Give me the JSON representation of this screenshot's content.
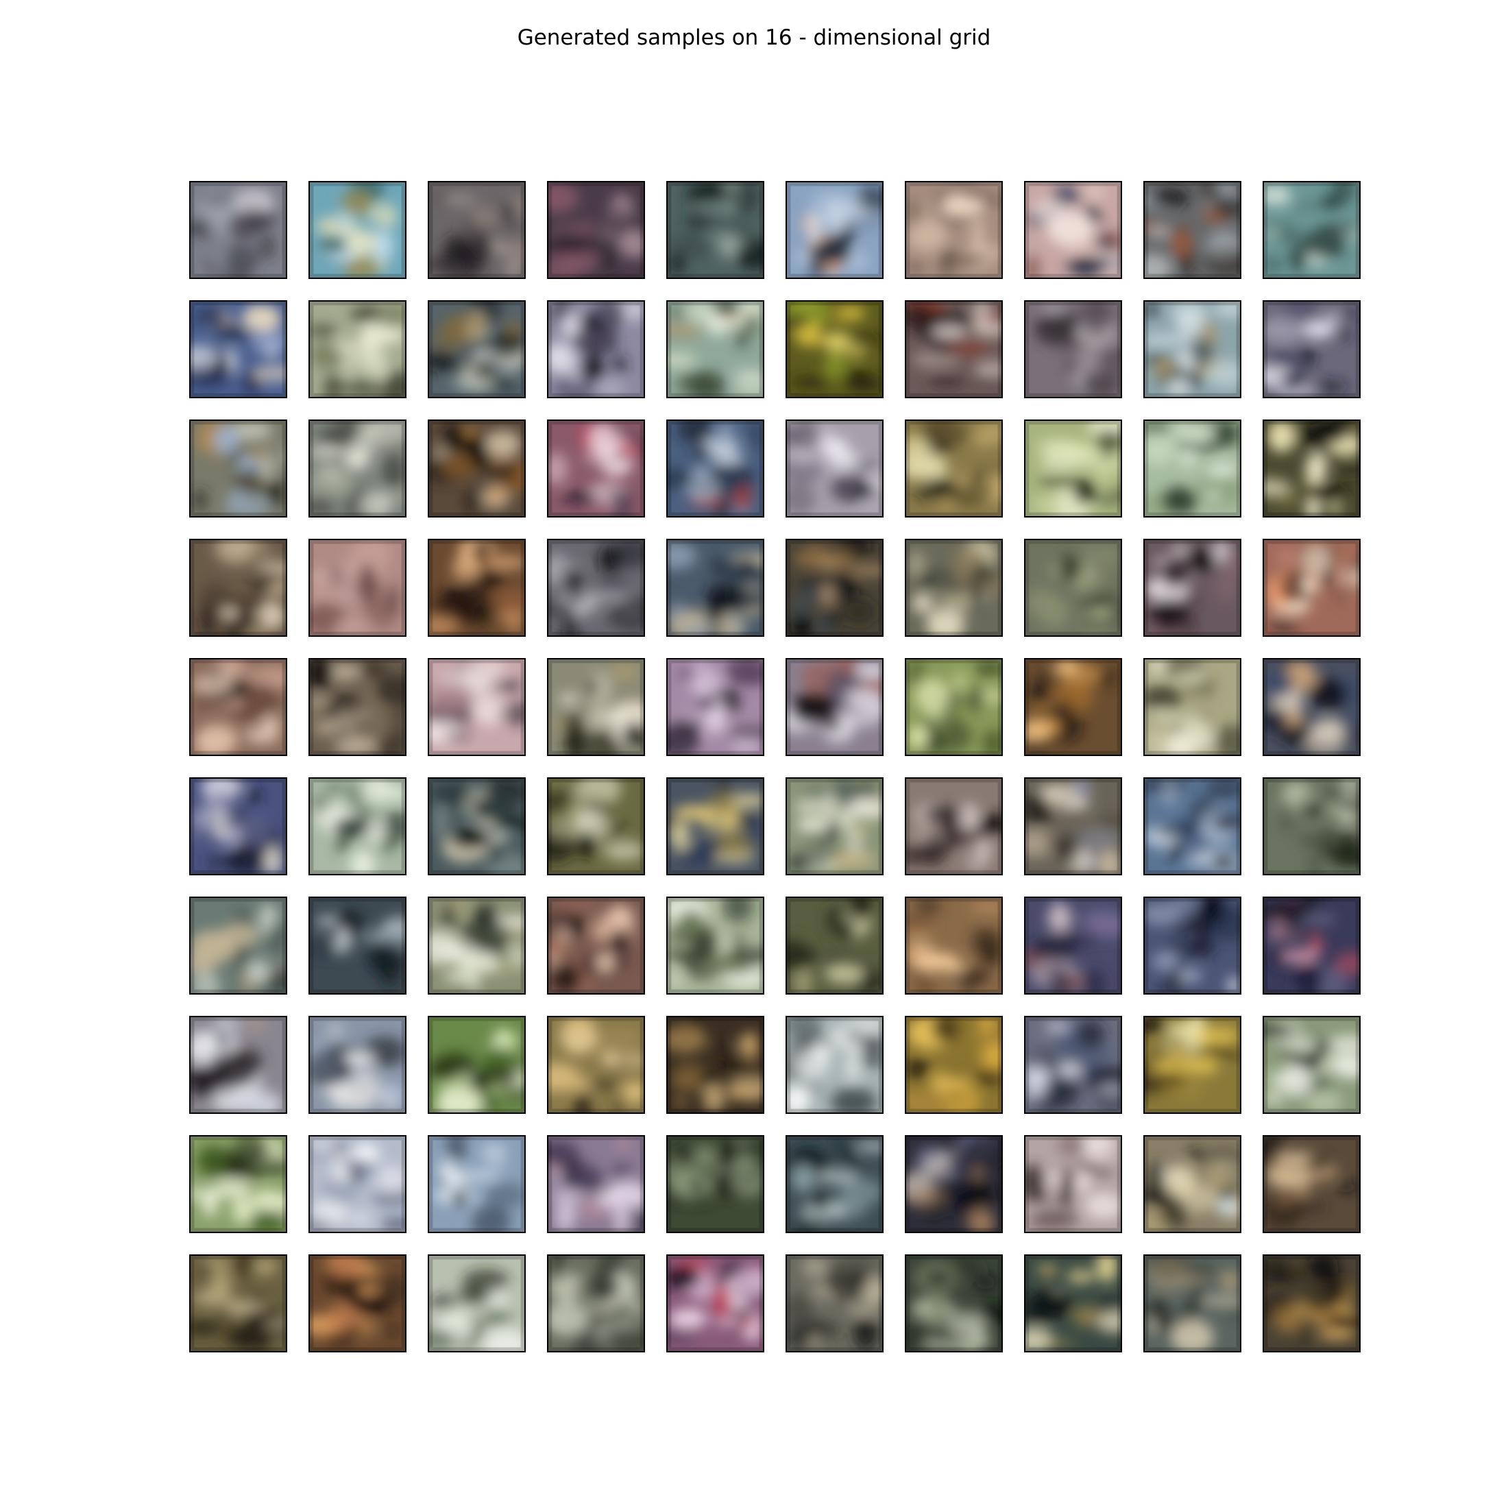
{
  "figure": {
    "title": "Generated samples on 16 - dimensional grid"
  },
  "grid": {
    "rows": 10,
    "cols": 10,
    "samples": [
      {
        "bg": "#7d7f8a",
        "c": [
          "#3a3540",
          "#c7c3cc",
          "#4b4a52",
          "#9aa0ab",
          "#2a2a30"
        ]
      },
      {
        "bg": "#6fa7b8",
        "c": [
          "#d9d7b0",
          "#2f5a57",
          "#b8d8e8",
          "#8f8a5a",
          "#e8e4c2"
        ]
      },
      {
        "bg": "#6b6668",
        "c": [
          "#2e2a2e",
          "#b5aaa3",
          "#4c4448",
          "#8e827d",
          "#1f1c1f"
        ]
      },
      {
        "bg": "#4a3b49",
        "c": [
          "#8a5a6a",
          "#1f1820",
          "#b59aa3",
          "#3a2f3d",
          "#6b4e5b"
        ]
      },
      {
        "bg": "#4f6361",
        "c": [
          "#1d2726",
          "#a9b7b0",
          "#3a4a48",
          "#7e918c",
          "#121a19"
        ]
      },
      {
        "bg": "#8aa3c2",
        "c": [
          "#d8e2ee",
          "#3a4455",
          "#e0a98a",
          "#24303d",
          "#b9c9dd"
        ]
      },
      {
        "bg": "#a68e7f",
        "c": [
          "#d4bba5",
          "#5a4a42",
          "#8a7468",
          "#efd9c5",
          "#6a574c"
        ]
      },
      {
        "bg": "#c7a7a6",
        "c": [
          "#2f3a5a",
          "#f2e1dc",
          "#8d5f58",
          "#1f2438",
          "#ddc3bc"
        ]
      },
      {
        "bg": "#66686a",
        "c": [
          "#2a1e18",
          "#9aa3aa",
          "#a05a3a",
          "#1a1614",
          "#c2c6c8"
        ]
      },
      {
        "bg": "#6c9795",
        "c": [
          "#203430",
          "#b8d0c6",
          "#4d6c68",
          "#d6e2dc",
          "#2b4440"
        ]
      },
      {
        "bg": "#4a5f8f",
        "c": [
          "#1c2440",
          "#d7dce6",
          "#8b9cc4",
          "#e6d7c0",
          "#2c3558"
        ]
      },
      {
        "bg": "#a4ab90",
        "c": [
          "#d9ddc2",
          "#4c4f3c",
          "#7c8262",
          "#efeed8",
          "#3a3d2c"
        ]
      },
      {
        "bg": "#55636a",
        "c": [
          "#0f1214",
          "#b8c2c0",
          "#8a6a30",
          "#2b3436",
          "#d6d3bf"
        ]
      },
      {
        "bg": "#8e8aa3",
        "c": [
          "#1c1a24",
          "#e0dde8",
          "#5a5670",
          "#b8b4c8",
          "#2e2b3a"
        ]
      },
      {
        "bg": "#8fa89a",
        "c": [
          "#d6e0c8",
          "#4a5a40",
          "#b09060",
          "#e8eee0",
          "#33402e"
        ]
      },
      {
        "bg": "#5c5a1e",
        "c": [
          "#e0c440",
          "#141408",
          "#8a9a2a",
          "#f2e070",
          "#262410"
        ]
      },
      {
        "bg": "#6c5a58",
        "c": [
          "#1f1515",
          "#c9b9b4",
          "#8a3a2e",
          "#e8dcd6",
          "#3d2c2a"
        ]
      },
      {
        "bg": "#7a7078",
        "c": [
          "#4a4048",
          "#9c929a",
          "#5c535a",
          "#b3abb1",
          "#3a3238"
        ]
      },
      {
        "bg": "#8ca4ab",
        "c": [
          "#c8d8dc",
          "#2e3a3c",
          "#b09a6a",
          "#e0eaec",
          "#4c5c60"
        ]
      },
      {
        "bg": "#6a687a",
        "c": [
          "#22203a",
          "#b8b6c6",
          "#4a4866",
          "#dcdae4",
          "#1a1828"
        ]
      },
      {
        "bg": "#7a7a6a",
        "c": [
          "#9ab0cc",
          "#3a3422",
          "#b08a50",
          "#d6d6c6",
          "#2a2a22"
        ]
      },
      {
        "bg": "#7d837c",
        "c": [
          "#d6d8cc",
          "#3a3e36",
          "#a2a898",
          "#eceadc",
          "#4e524a"
        ]
      },
      {
        "bg": "#5a4a3a",
        "c": [
          "#1a120c",
          "#c8b8a0",
          "#8a5a2a",
          "#e0a050",
          "#2c241c"
        ]
      },
      {
        "bg": "#8a5a6a",
        "c": [
          "#f0dae2",
          "#1a1020",
          "#c84058",
          "#4a3a4e",
          "#e8c8d4"
        ]
      },
      {
        "bg": "#4a6080",
        "c": [
          "#18202c",
          "#b8c8dc",
          "#a03a3a",
          "#d8e0ea",
          "#2a3a50"
        ]
      },
      {
        "bg": "#a6a0ac",
        "c": [
          "#e8e4ec",
          "#2a2630",
          "#6a6070",
          "#cfc8d4",
          "#48424e"
        ]
      },
      {
        "bg": "#8a7a4a",
        "c": [
          "#c8b070",
          "#1a1810",
          "#e0d8a8",
          "#4a3e22",
          "#b8a060"
        ]
      },
      {
        "bg": "#a8b480",
        "c": [
          "#e0e8b8",
          "#3a4428",
          "#c4cf98",
          "#283018",
          "#f0f2d4"
        ]
      },
      {
        "bg": "#a6bca0",
        "c": [
          "#d8e8d0",
          "#1e2e1e",
          "#8aa27c",
          "#eaf2e4",
          "#3a4c36"
        ]
      },
      {
        "bg": "#4a4a30",
        "c": [
          "#0e0e08",
          "#e8e0b0",
          "#8a8248",
          "#2a2818",
          "#f6f0d0"
        ]
      },
      {
        "bg": "#6a5a48",
        "c": [
          "#1e1610",
          "#c8b498",
          "#4a3a2c",
          "#e8d8c0",
          "#8a7a60"
        ]
      },
      {
        "bg": "#b08a84",
        "c": [
          "#c8a09a",
          "#7a5450",
          "#d8b8b2",
          "#6a4a46",
          "#b49490"
        ]
      },
      {
        "bg": "#6a4a30",
        "c": [
          "#140c08",
          "#c89060",
          "#3a2418",
          "#e0b080",
          "#8a5a38"
        ]
      },
      {
        "bg": "#6a6870",
        "c": [
          "#1a1a20",
          "#c8c6ce",
          "#3e3c46",
          "#a8a6ae",
          "#0e0e14"
        ]
      },
      {
        "bg": "#4a5a6a",
        "c": [
          "#141a22",
          "#c8b490",
          "#2a3848",
          "#8a9cb0",
          "#e0d2b4"
        ]
      },
      {
        "bg": "#4a4438",
        "c": [
          "#0e0c0a",
          "#8a6a40",
          "#3a4a5a",
          "#c8a070",
          "#1e1a14"
        ]
      },
      {
        "bg": "#6a6a5a",
        "c": [
          "#2a2e26",
          "#c8c0a0",
          "#8a7a5a",
          "#e0d8c0",
          "#4a4e42"
        ]
      },
      {
        "bg": "#6e7460",
        "c": [
          "#8a9070",
          "#4e5442",
          "#a2a884",
          "#3e4434",
          "#7c8266"
        ]
      },
      {
        "bg": "#6a5860",
        "c": [
          "#1a1218",
          "#e8e0e4",
          "#8a6a74",
          "#d6ccd0",
          "#3a2a32"
        ]
      },
      {
        "bg": "#a06a5a",
        "c": [
          "#fff0d8",
          "#2a1a18",
          "#f0a070",
          "#c88878",
          "#4a2e28"
        ]
      },
      {
        "bg": "#8a6a5a",
        "c": [
          "#c8a090",
          "#3a2a24",
          "#e0c0a8",
          "#6a4a3e",
          "#f0d8c4"
        ]
      },
      {
        "bg": "#6a5e4e",
        "c": [
          "#1a1612",
          "#b8a890",
          "#3e3428",
          "#d8c8b0",
          "#8a7a64"
        ]
      },
      {
        "bg": "#c8a8ac",
        "c": [
          "#ecdcdc",
          "#2a2430",
          "#b08890",
          "#f6eeee",
          "#6a5460"
        ]
      },
      {
        "bg": "#8a8a76",
        "c": [
          "#1a1a12",
          "#d8d4c0",
          "#a89a70",
          "#4a4a38",
          "#eeeade"
        ]
      },
      {
        "bg": "#a48aa6",
        "c": [
          "#f0e0f0",
          "#1e1622",
          "#6a4a70",
          "#d8c4dc",
          "#3a2c3e"
        ]
      },
      {
        "bg": "#8a8090",
        "c": [
          "#e8e4ec",
          "#1a1418",
          "#a05a4a",
          "#5a5062",
          "#d0c8d4"
        ]
      },
      {
        "bg": "#8a9a5a",
        "c": [
          "#e0e8b0",
          "#1e2812",
          "#4a5a2a",
          "#c8d498",
          "#2e3a1c"
        ]
      },
      {
        "bg": "#6a4e30",
        "c": [
          "#1a1210",
          "#e0a050",
          "#a06a30",
          "#3a2818",
          "#f0c080"
        ]
      },
      {
        "bg": "#aaa884",
        "c": [
          "#d8d6b8",
          "#3a3a2a",
          "#8a8868",
          "#eeecd6",
          "#5a5a44"
        ]
      },
      {
        "bg": "#4a5060",
        "c": [
          "#141820",
          "#c8a078",
          "#3a4a6a",
          "#dcd0c0",
          "#1e2434"
        ]
      },
      {
        "bg": "#4a5280",
        "c": [
          "#1a1c30",
          "#c8c8d8",
          "#6a6c94",
          "#e0dcd0",
          "#2c2e48"
        ]
      },
      {
        "bg": "#a8b8a4",
        "c": [
          "#e4ecdc",
          "#2a3a2e",
          "#6a7e6a",
          "#f2f6ec",
          "#40523e"
        ]
      },
      {
        "bg": "#4a5a5e",
        "c": [
          "#0e1414",
          "#c8c0a8",
          "#2a3a3c",
          "#8a9a98",
          "#e0d8c4"
        ]
      },
      {
        "bg": "#6a6a42",
        "c": [
          "#1a1a0e",
          "#b8b898",
          "#8a8a5a",
          "#3a3a22",
          "#d8d8c0"
        ]
      },
      {
        "bg": "#4a5462",
        "c": [
          "#121820",
          "#e0c878",
          "#2a3a58",
          "#8a7a48",
          "#f6e6a8"
        ]
      },
      {
        "bg": "#8a9478",
        "c": [
          "#e0e4d0",
          "#1a2424",
          "#c8b888",
          "#4a5a54",
          "#f0eee0"
        ]
      },
      {
        "bg": "#8a7a74",
        "c": [
          "#2a2020",
          "#d8ccc8",
          "#5a4a46",
          "#b8a8a0",
          "#1a1414"
        ]
      },
      {
        "bg": "#6a6458",
        "c": [
          "#2a2620",
          "#c8b8a0",
          "#8a8ca0",
          "#4a443a",
          "#e0d8c8"
        ]
      },
      {
        "bg": "#5a7494",
        "c": [
          "#1a2434",
          "#c8d4e0",
          "#3a5070",
          "#a8b8cc",
          "#0e1420"
        ]
      },
      {
        "bg": "#6a7460",
        "c": [
          "#1e2418",
          "#d0d8c0",
          "#4a5440",
          "#b0b8a0",
          "#2e3426"
        ]
      },
      {
        "bg": "#6a7a74",
        "c": [
          "#c8b898",
          "#2a3434",
          "#a89070",
          "#dce2d8",
          "#4a5854"
        ]
      },
      {
        "bg": "#3e4a52",
        "c": [
          "#121a1e",
          "#a8b8c0",
          "#2a3640",
          "#c8d0d4",
          "#1a242a"
        ]
      },
      {
        "bg": "#8a9074",
        "c": [
          "#e8ecd8",
          "#2a3028",
          "#b0a880",
          "#f4f4e8",
          "#3e4638"
        ]
      },
      {
        "bg": "#7a5a50",
        "c": [
          "#2a1a18",
          "#e0b8a0",
          "#a06a58",
          "#4a3230",
          "#f0d0b8"
        ]
      },
      {
        "bg": "#a8b498",
        "c": [
          "#1a1e14",
          "#e8f0e0",
          "#6a7a58",
          "#d8e0c8",
          "#2e3624"
        ]
      },
      {
        "bg": "#5a5e40",
        "c": [
          "#1a1c12",
          "#a8a87a",
          "#3a3e2a",
          "#c8c8a0",
          "#2a2e1e"
        ]
      },
      {
        "bg": "#8a6a48",
        "c": [
          "#2a1e14",
          "#e0a870",
          "#6a4a30",
          "#f0c898",
          "#3e2e20"
        ]
      },
      {
        "bg": "#4a4a6a",
        "c": [
          "#1a1a2e",
          "#c8b8c0",
          "#6a6a9a",
          "#a05a5a",
          "#2e2e48"
        ]
      },
      {
        "bg": "#4a5474",
        "c": [
          "#0e1220",
          "#c8d0e0",
          "#2a3450",
          "#8a94b0",
          "#1a1e30"
        ]
      },
      {
        "bg": "#3a3a5a",
        "c": [
          "#141420",
          "#c05060",
          "#6a6a8a",
          "#e0a0b0",
          "#20203a"
        ]
      },
      {
        "bg": "#8a8690",
        "c": [
          "#d8dce8",
          "#1e1a1e",
          "#a89888",
          "#eceef4",
          "#3a3438"
        ]
      },
      {
        "bg": "#8a96a8",
        "c": [
          "#dcdcdc",
          "#2a2e34",
          "#a8b8d0",
          "#f0f0ee",
          "#4a5260"
        ]
      },
      {
        "bg": "#6a8a4a",
        "c": [
          "#e8f0d0",
          "#1a2410",
          "#4a6a2a",
          "#c8e0a0",
          "#2a3a18"
        ]
      },
      {
        "bg": "#8a7a4a",
        "c": [
          "#e0c080",
          "#2a2418",
          "#a8905a",
          "#4a3e28",
          "#f0d8a0"
        ]
      },
      {
        "bg": "#3a2e22",
        "c": [
          "#100c08",
          "#c8a060",
          "#2a2418",
          "#8a6a3a",
          "#e0c088"
        ]
      },
      {
        "bg": "#a8b4b4",
        "c": [
          "#e8ecec",
          "#2a3034",
          "#8a9494",
          "#f6f8f8",
          "#4a5458"
        ]
      },
      {
        "bg": "#8a7430",
        "c": [
          "#e0b040",
          "#2a2010",
          "#a8863a",
          "#f0c860",
          "#4a3a18"
        ]
      },
      {
        "bg": "#6a6e80",
        "c": [
          "#1a1e2e",
          "#b8bccc",
          "#4a5674",
          "#d8dae4",
          "#2a2e44"
        ]
      },
      {
        "bg": "#8a7a3a",
        "c": [
          "#e0c050",
          "#1a160a",
          "#f0e8b0",
          "#4a3e1a",
          "#b89a40"
        ]
      },
      {
        "bg": "#8a9a7a",
        "c": [
          "#e0e8d4",
          "#2a342a",
          "#b0c0a0",
          "#f4f6ee",
          "#4a5a44"
        ]
      },
      {
        "bg": "#8aa06a",
        "c": [
          "#dce8c0",
          "#141a0e",
          "#4a6a2a",
          "#f0f4e0",
          "#2a3a18"
        ]
      },
      {
        "bg": "#b4bccc",
        "c": [
          "#eceef4",
          "#3a4052",
          "#8a94ac",
          "#f8f8fa",
          "#5a6278"
        ]
      },
      {
        "bg": "#8aa0b8",
        "c": [
          "#dce6f0",
          "#2a3440",
          "#a8bcd0",
          "#f2f6fa",
          "#4a5a6c"
        ]
      },
      {
        "bg": "#8a7a94",
        "c": [
          "#e8dcec",
          "#2a2234",
          "#b08a9a",
          "#4a3e5a",
          "#d4c4d8"
        ]
      },
      {
        "bg": "#3e4a34",
        "c": [
          "#101810",
          "#a8b898",
          "#2a3424",
          "#8a9a7a",
          "#1a2016"
        ]
      },
      {
        "bg": "#3e4e54",
        "c": [
          "#101a1e",
          "#c8d4d4",
          "#2a3a40",
          "#8aa0a4",
          "#1a282c"
        ]
      },
      {
        "bg": "#2e2e3a",
        "c": [
          "#0e0e14",
          "#d8d0c8",
          "#6a6a8a",
          "#a07a5a",
          "#1a1a24"
        ]
      },
      {
        "bg": "#b4a4a4",
        "c": [
          "#ece0dc",
          "#3a2e2e",
          "#8a7474",
          "#f6eeea",
          "#5a4a4a"
        ]
      },
      {
        "bg": "#8a8068",
        "c": [
          "#e0d4b0",
          "#1a1a14",
          "#a89a70",
          "#c8d8e0",
          "#3a3628"
        ]
      },
      {
        "bg": "#5a4a3a",
        "c": [
          "#140e0a",
          "#c8a880",
          "#3a2c20",
          "#8a6a4a",
          "#e0c8a0"
        ]
      },
      {
        "bg": "#6a6040",
        "c": [
          "#1a1810",
          "#d8c8a0",
          "#4a4028",
          "#b8a878",
          "#2a2418"
        ]
      },
      {
        "bg": "#6a4a30",
        "c": [
          "#140c08",
          "#e0a060",
          "#3a2818",
          "#c88050",
          "#2a1c12"
        ]
      },
      {
        "bg": "#b8c0b0",
        "c": [
          "#f4f6f0",
          "#1a2018",
          "#6a7a64",
          "#e0e8d8",
          "#3a4834"
        ]
      },
      {
        "bg": "#6a6e60",
        "c": [
          "#1e221c",
          "#b8bca8",
          "#4a4e42",
          "#d0d4c4",
          "#2e322a"
        ]
      },
      {
        "bg": "#8a5a7a",
        "c": [
          "#e0c0d8",
          "#1a1020",
          "#c04058",
          "#4a3a5a",
          "#f0d8e8"
        ]
      },
      {
        "bg": "#6a6a60",
        "c": [
          "#1e1e1a",
          "#c8c0a8",
          "#4a4a42",
          "#a8a08a",
          "#2e2e28"
        ]
      },
      {
        "bg": "#3a4438",
        "c": [
          "#101410",
          "#a8b098",
          "#2a3228",
          "#7a8468",
          "#c8ccb8"
        ]
      },
      {
        "bg": "#3a4a44",
        "c": [
          "#0e1414",
          "#e0d090",
          "#2a3a3a",
          "#a88a4a",
          "#f6ecc8"
        ]
      },
      {
        "bg": "#5a6460",
        "c": [
          "#1a201e",
          "#c8c0a8",
          "#3a4440",
          "#a89878",
          "#2a302c"
        ]
      },
      {
        "bg": "#4a4234",
        "c": [
          "#100e0a",
          "#e0b060",
          "#2a241a",
          "#a88040",
          "#3a3020"
        ]
      }
    ]
  }
}
